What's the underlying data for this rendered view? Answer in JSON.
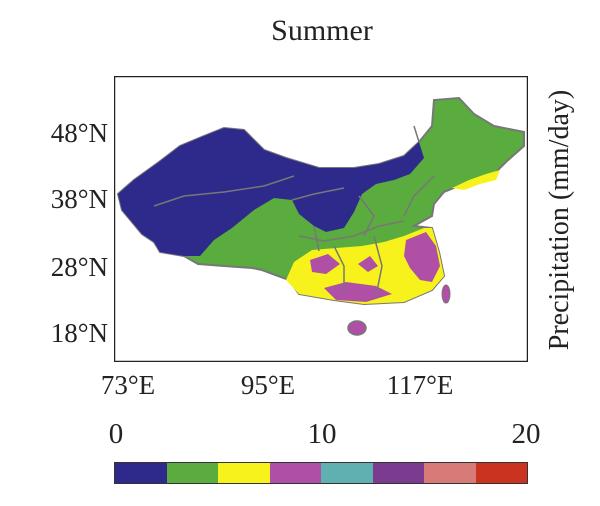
{
  "title": "Summer",
  "colorbar_label": "Precipitation (mm/day)",
  "lat_labels": [
    "48°N",
    "38°N",
    "28°N",
    "18°N"
  ],
  "lon_labels": [
    "73°E",
    "95°E",
    "117°E"
  ],
  "colorbar": {
    "tick_labels": [
      "0",
      "10",
      "20"
    ],
    "min": 0,
    "max": 20,
    "colors": [
      "#2e2a8c",
      "#5aac3e",
      "#f7f21c",
      "#b04fa6",
      "#5fb0b0",
      "#7b3b8f",
      "#d77a78",
      "#c9331f"
    ]
  },
  "map_colors": {
    "land_low": "#2e2a8c",
    "land_mid": "#5aac3e",
    "land_high": "#f7f21c",
    "land_peak": "#b04fa6",
    "border": "#6b6b6b"
  }
}
